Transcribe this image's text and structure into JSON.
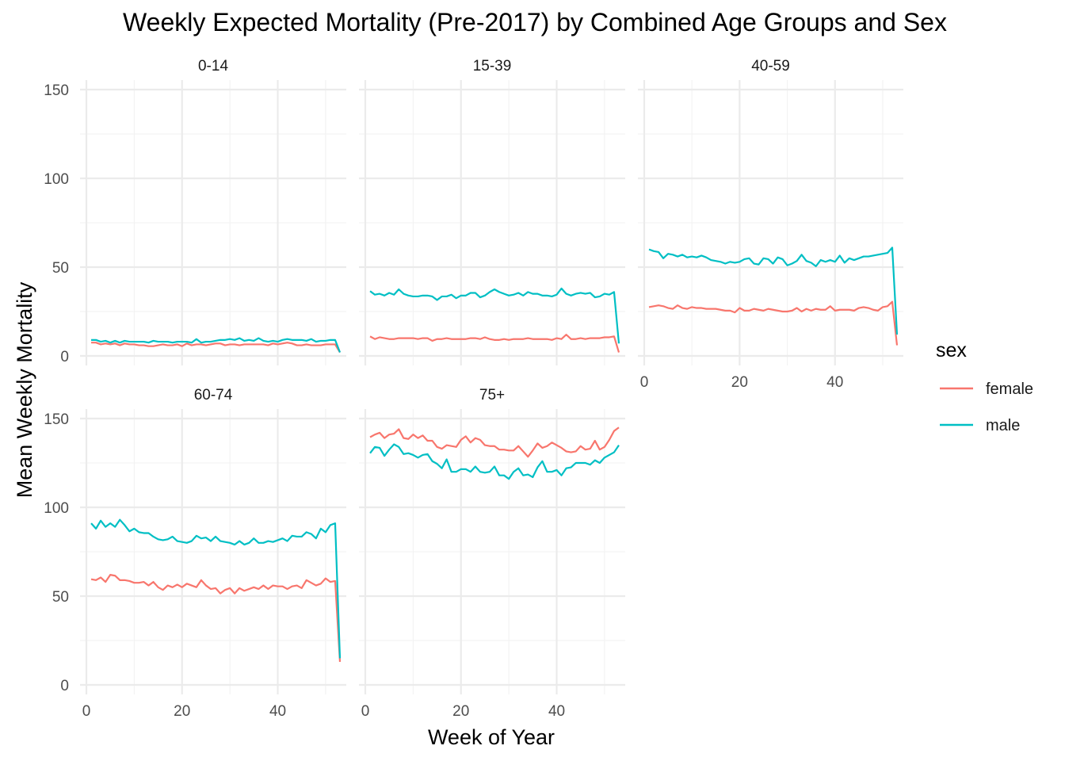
{
  "chart_data": {
    "type": "line",
    "title": "Weekly Expected Mortality (Pre-2017) by Combined Age Groups and Sex",
    "xlabel": "Week of Year",
    "ylabel": "Mean Weekly Mortality",
    "xlim": [
      0,
      53
    ],
    "ylim": [
      0,
      150
    ],
    "x_ticks": [
      "0",
      "20",
      "40"
    ],
    "y_ticks": [
      "0",
      "50",
      "100",
      "150"
    ],
    "grid": true,
    "legend": {
      "title": "sex",
      "position": "right",
      "entries": [
        {
          "label": "female",
          "color": "#F8766D"
        },
        {
          "label": "male",
          "color": "#00BFC4"
        }
      ]
    },
    "x_week": [
      1,
      2,
      3,
      4,
      5,
      6,
      7,
      8,
      9,
      10,
      11,
      12,
      13,
      14,
      15,
      16,
      17,
      18,
      19,
      20,
      21,
      22,
      23,
      24,
      25,
      26,
      27,
      28,
      29,
      30,
      31,
      32,
      33,
      34,
      35,
      36,
      37,
      38,
      39,
      40,
      41,
      42,
      43,
      44,
      45,
      46,
      47,
      48,
      49,
      50,
      51,
      52,
      53
    ],
    "panels": [
      {
        "label": "0-14",
        "series": [
          {
            "name": "female",
            "values": [
              7.5,
              7.5,
              6.5,
              7,
              6.5,
              7,
              6,
              7,
              6.5,
              6.5,
              6,
              6,
              5.5,
              5.5,
              6,
              6.5,
              6,
              6,
              6.5,
              5.5,
              7,
              6,
              6.5,
              6.5,
              6,
              6.5,
              7,
              7,
              6,
              6.5,
              6.5,
              6,
              6.5,
              6.5,
              6.5,
              6.5,
              6.5,
              6,
              7,
              6.5,
              7,
              7.5,
              7,
              6,
              6,
              6.5,
              6,
              6,
              6,
              6.5,
              6.5,
              6.5,
              2
            ]
          },
          {
            "name": "male",
            "values": [
              9,
              9,
              8,
              8.5,
              7.5,
              8.5,
              7.5,
              8.5,
              8,
              8,
              8,
              8,
              7.5,
              8.5,
              8,
              8,
              8,
              7.5,
              8,
              8,
              8,
              7.5,
              9.5,
              7.5,
              8,
              8,
              8.5,
              9,
              9,
              9.5,
              9,
              10,
              8.5,
              9,
              8.5,
              10,
              8.5,
              8,
              8.5,
              8,
              9,
              9.5,
              9,
              9,
              9,
              8.5,
              9.5,
              8,
              8.5,
              8.5,
              9,
              9,
              2
            ]
          }
        ]
      },
      {
        "label": "15-39",
        "series": [
          {
            "name": "female",
            "values": [
              11,
              9.5,
              10.5,
              10,
              9.5,
              9.5,
              10,
              10,
              10,
              10,
              9.5,
              10,
              10,
              8.5,
              9.5,
              9.5,
              10,
              9.5,
              9.5,
              9.5,
              9.5,
              10,
              10,
              9.5,
              10.5,
              9.5,
              9,
              9,
              9.5,
              9,
              9.5,
              9.5,
              9.5,
              10,
              9.5,
              9.5,
              9.5,
              9.5,
              9,
              10,
              9.5,
              12,
              9.5,
              9.5,
              10,
              9.5,
              10,
              10,
              10,
              10.5,
              10.5,
              11,
              2
            ]
          },
          {
            "name": "male",
            "values": [
              36.5,
              34.5,
              35,
              34,
              35.5,
              34.5,
              37.5,
              35,
              34,
              33.5,
              33.5,
              34,
              34,
              33.5,
              31.5,
              33.5,
              33.5,
              34.5,
              32.5,
              34,
              34,
              35.5,
              35.5,
              33,
              34,
              36,
              37.5,
              36,
              35,
              34,
              34.5,
              35.5,
              34,
              36,
              35,
              35,
              34,
              34,
              33.5,
              34.5,
              38,
              35,
              34,
              35,
              35.5,
              35,
              35.5,
              33,
              33.5,
              35,
              34.5,
              36,
              7
            ]
          }
        ]
      },
      {
        "label": "40-59",
        "series": [
          {
            "name": "female",
            "values": [
              27.5,
              28,
              28.5,
              28,
              27,
              26.5,
              28.5,
              27,
              26.5,
              27.5,
              27,
              27,
              26.5,
              26.5,
              26.5,
              26,
              25.5,
              25.5,
              24.5,
              27,
              25.5,
              25.5,
              26.5,
              26,
              25.5,
              26.5,
              26,
              25.5,
              25,
              25,
              25.5,
              27,
              25,
              26.5,
              25.5,
              26.5,
              26,
              26,
              28,
              25.5,
              26,
              26,
              26,
              25.5,
              27,
              27.5,
              27,
              26,
              25.5,
              27.5,
              28,
              30.5,
              6
            ]
          },
          {
            "name": "male",
            "values": [
              60,
              59,
              58.5,
              55,
              57.5,
              57,
              56,
              57,
              55.5,
              56,
              55.5,
              56.5,
              55.5,
              54,
              53.5,
              53,
              52,
              53,
              52.5,
              53,
              54.5,
              55,
              52,
              51.5,
              55,
              54.5,
              52,
              55.5,
              54.5,
              51,
              52,
              53.5,
              57,
              53.5,
              52.5,
              50.5,
              54,
              53,
              54,
              53,
              56.5,
              52.5,
              55,
              54,
              55,
              56,
              56,
              56.5,
              57,
              57.5,
              58,
              61,
              12
            ]
          }
        ]
      },
      {
        "label": "60-74",
        "series": [
          {
            "name": "female",
            "values": [
              59.5,
              59,
              60.5,
              58,
              62,
              61.5,
              59,
              59,
              58.5,
              57.5,
              57.5,
              58,
              56,
              58,
              55,
              53.5,
              56,
              55,
              56.5,
              55,
              57,
              56,
              55,
              59,
              56,
              54,
              54.5,
              51.5,
              53.5,
              54.5,
              51.5,
              54.5,
              53,
              54,
              55,
              54,
              56,
              54,
              56,
              55.5,
              55.5,
              54,
              55.5,
              56,
              54.5,
              59,
              57.5,
              56,
              57,
              60,
              58,
              58.5,
              13
            ]
          },
          {
            "name": "male",
            "values": [
              91,
              88,
              92.5,
              89,
              91,
              89,
              93,
              90,
              86.5,
              88,
              86,
              85.5,
              85.5,
              83.5,
              82,
              81.5,
              82,
              83.5,
              81,
              80.5,
              80,
              81,
              84,
              82.5,
              83,
              81,
              83.5,
              81,
              80.5,
              80,
              79,
              81,
              79,
              80,
              82.5,
              80,
              80,
              81,
              80.5,
              81.5,
              82.5,
              81,
              84,
              83.5,
              83.5,
              86,
              85,
              82.5,
              88,
              86,
              90,
              91,
              15
            ]
          }
        ]
      },
      {
        "label": "75+",
        "series": [
          {
            "name": "female",
            "values": [
              139.5,
              141,
              142,
              139,
              141,
              141.5,
              144,
              139,
              138.5,
              141,
              139,
              140.5,
              137.5,
              137.5,
              134,
              133,
              135,
              134.5,
              134,
              138,
              140,
              136.5,
              139,
              138,
              135,
              134.5,
              134.5,
              132.5,
              132.5,
              132,
              132,
              134.5,
              131.5,
              128.5,
              132,
              136,
              133.5,
              134.5,
              136.5,
              135,
              133.5,
              131.5,
              131,
              131.5,
              134.5,
              132.5,
              133,
              137.5,
              132.5,
              134,
              138,
              143,
              145
            ]
          },
          {
            "name": "male",
            "values": [
              130.5,
              134,
              133.5,
              129,
              132.5,
              135.5,
              134,
              130,
              130.5,
              129.5,
              128,
              129.5,
              130,
              126,
              124.5,
              122,
              127,
              120,
              120,
              121.5,
              121.5,
              120,
              123,
              120,
              119.5,
              120,
              123,
              118,
              118,
              116,
              120,
              122,
              118,
              118.5,
              117,
              122.5,
              126,
              120,
              120,
              121,
              118,
              122,
              122.5,
              125,
              125,
              125,
              124,
              126.5,
              125,
              128,
              129.5,
              131,
              135
            ]
          }
        ]
      }
    ]
  }
}
